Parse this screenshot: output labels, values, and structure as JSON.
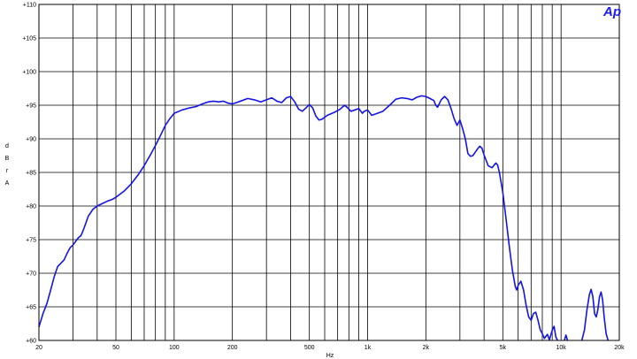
{
  "logo": "Ap",
  "chart_data": {
    "type": "line",
    "title": "",
    "xlabel": "Hz",
    "ylabel_letters": [
      "d",
      "B",
      "r",
      "A"
    ],
    "xscale": "log",
    "xlim": [
      20,
      20000
    ],
    "ylim": [
      60,
      110
    ],
    "grid": true,
    "x_ticks": [
      {
        "v": 20,
        "label": "20"
      },
      {
        "v": 50,
        "label": "50"
      },
      {
        "v": 100,
        "label": "100"
      },
      {
        "v": 200,
        "label": "200"
      },
      {
        "v": 500,
        "label": "500"
      },
      {
        "v": 1000,
        "label": "1k"
      },
      {
        "v": 2000,
        "label": "2k"
      },
      {
        "v": 5000,
        "label": "5k"
      },
      {
        "v": 10000,
        "label": "10k"
      },
      {
        "v": 20000,
        "label": "20k"
      }
    ],
    "y_ticks": [
      {
        "v": 60,
        "label": "+60"
      },
      {
        "v": 65,
        "label": "+65"
      },
      {
        "v": 70,
        "label": "+70"
      },
      {
        "v": 75,
        "label": "+75"
      },
      {
        "v": 80,
        "label": "+80"
      },
      {
        "v": 85,
        "label": "+85"
      },
      {
        "v": 90,
        "label": "+90"
      },
      {
        "v": 95,
        "label": "+95"
      },
      {
        "v": 100,
        "label": "+100"
      },
      {
        "v": 105,
        "label": "+105"
      },
      {
        "v": 110,
        "label": "+110"
      }
    ],
    "series": [
      {
        "color": "#1414e6",
        "points": [
          [
            20,
            62.0
          ],
          [
            21,
            64.0
          ],
          [
            22,
            65.5
          ],
          [
            23,
            67.5
          ],
          [
            24,
            69.5
          ],
          [
            25,
            71.0
          ],
          [
            26,
            71.5
          ],
          [
            27,
            72.0
          ],
          [
            28,
            73.0
          ],
          [
            29,
            73.8
          ],
          [
            30,
            74.2
          ],
          [
            32,
            75.3
          ],
          [
            33,
            75.6
          ],
          [
            34,
            76.5
          ],
          [
            35,
            77.5
          ],
          [
            36,
            78.5
          ],
          [
            38,
            79.5
          ],
          [
            40,
            80.0
          ],
          [
            42,
            80.3
          ],
          [
            45,
            80.7
          ],
          [
            48,
            81.0
          ],
          [
            50,
            81.3
          ],
          [
            55,
            82.2
          ],
          [
            60,
            83.3
          ],
          [
            65,
            84.6
          ],
          [
            70,
            86.0
          ],
          [
            75,
            87.5
          ],
          [
            80,
            89.0
          ],
          [
            85,
            90.5
          ],
          [
            90,
            92.0
          ],
          [
            95,
            93.0
          ],
          [
            100,
            93.8
          ],
          [
            110,
            94.3
          ],
          [
            120,
            94.6
          ],
          [
            130,
            94.8
          ],
          [
            140,
            95.2
          ],
          [
            150,
            95.5
          ],
          [
            160,
            95.6
          ],
          [
            170,
            95.5
          ],
          [
            180,
            95.6
          ],
          [
            190,
            95.3
          ],
          [
            200,
            95.2
          ],
          [
            210,
            95.4
          ],
          [
            220,
            95.6
          ],
          [
            240,
            96.0
          ],
          [
            260,
            95.8
          ],
          [
            280,
            95.5
          ],
          [
            300,
            95.8
          ],
          [
            320,
            96.1
          ],
          [
            340,
            95.6
          ],
          [
            360,
            95.4
          ],
          [
            380,
            96.1
          ],
          [
            400,
            96.3
          ],
          [
            420,
            95.5
          ],
          [
            440,
            94.4
          ],
          [
            460,
            94.1
          ],
          [
            480,
            94.6
          ],
          [
            500,
            95.1
          ],
          [
            520,
            94.6
          ],
          [
            540,
            93.4
          ],
          [
            560,
            92.8
          ],
          [
            580,
            92.9
          ],
          [
            620,
            93.5
          ],
          [
            680,
            94.0
          ],
          [
            720,
            94.4
          ],
          [
            760,
            95.0
          ],
          [
            790,
            94.6
          ],
          [
            820,
            94.1
          ],
          [
            860,
            94.3
          ],
          [
            900,
            94.5
          ],
          [
            940,
            93.8
          ],
          [
            960,
            94.1
          ],
          [
            1000,
            94.3
          ],
          [
            1050,
            93.5
          ],
          [
            1100,
            93.7
          ],
          [
            1200,
            94.1
          ],
          [
            1300,
            95.0
          ],
          [
            1400,
            95.9
          ],
          [
            1500,
            96.1
          ],
          [
            1600,
            96.0
          ],
          [
            1700,
            95.8
          ],
          [
            1800,
            96.2
          ],
          [
            1900,
            96.4
          ],
          [
            2000,
            96.3
          ],
          [
            2100,
            96.0
          ],
          [
            2200,
            95.7
          ],
          [
            2250,
            95.0
          ],
          [
            2300,
            94.7
          ],
          [
            2400,
            95.8
          ],
          [
            2500,
            96.3
          ],
          [
            2600,
            95.8
          ],
          [
            2700,
            94.5
          ],
          [
            2800,
            93.0
          ],
          [
            2900,
            92.0
          ],
          [
            3000,
            92.8
          ],
          [
            3100,
            91.5
          ],
          [
            3200,
            90.0
          ],
          [
            3300,
            87.8
          ],
          [
            3400,
            87.4
          ],
          [
            3500,
            87.5
          ],
          [
            3700,
            88.5
          ],
          [
            3800,
            88.9
          ],
          [
            3900,
            88.6
          ],
          [
            4000,
            87.6
          ],
          [
            4200,
            86.0
          ],
          [
            4400,
            85.7
          ],
          [
            4600,
            86.4
          ],
          [
            4700,
            86.1
          ],
          [
            4800,
            85.0
          ],
          [
            5000,
            82.0
          ],
          [
            5200,
            78.0
          ],
          [
            5400,
            74.0
          ],
          [
            5600,
            70.5
          ],
          [
            5800,
            68.0
          ],
          [
            5900,
            67.5
          ],
          [
            6000,
            68.2
          ],
          [
            6200,
            68.8
          ],
          [
            6400,
            67.5
          ],
          [
            6600,
            65.2
          ],
          [
            6800,
            63.5
          ],
          [
            7000,
            63.0
          ],
          [
            7200,
            64.0
          ],
          [
            7400,
            64.2
          ],
          [
            7600,
            63.0
          ],
          [
            7800,
            61.6
          ],
          [
            8000,
            61.0
          ],
          [
            8200,
            60.3
          ],
          [
            8500,
            60.9
          ],
          [
            8700,
            60.1
          ],
          [
            9000,
            61.5
          ],
          [
            9200,
            62.1
          ],
          [
            9400,
            60.5
          ],
          [
            9600,
            60.0
          ]
        ]
      },
      {
        "color": "#1414e6",
        "points": [
          [
            10400,
            60.0
          ],
          [
            10600,
            60.8
          ],
          [
            10800,
            60.0
          ]
        ]
      },
      {
        "color": "#1414e6",
        "points": [
          [
            12800,
            60.0
          ],
          [
            13200,
            61.5
          ],
          [
            13600,
            64.5
          ],
          [
            14000,
            66.8
          ],
          [
            14300,
            67.6
          ],
          [
            14600,
            66.5
          ],
          [
            14900,
            64.0
          ],
          [
            15200,
            63.5
          ],
          [
            15500,
            64.6
          ],
          [
            15800,
            66.5
          ],
          [
            16100,
            67.2
          ],
          [
            16400,
            66.0
          ],
          [
            16700,
            63.5
          ],
          [
            17100,
            61.0
          ],
          [
            17500,
            60.0
          ]
        ]
      }
    ]
  }
}
